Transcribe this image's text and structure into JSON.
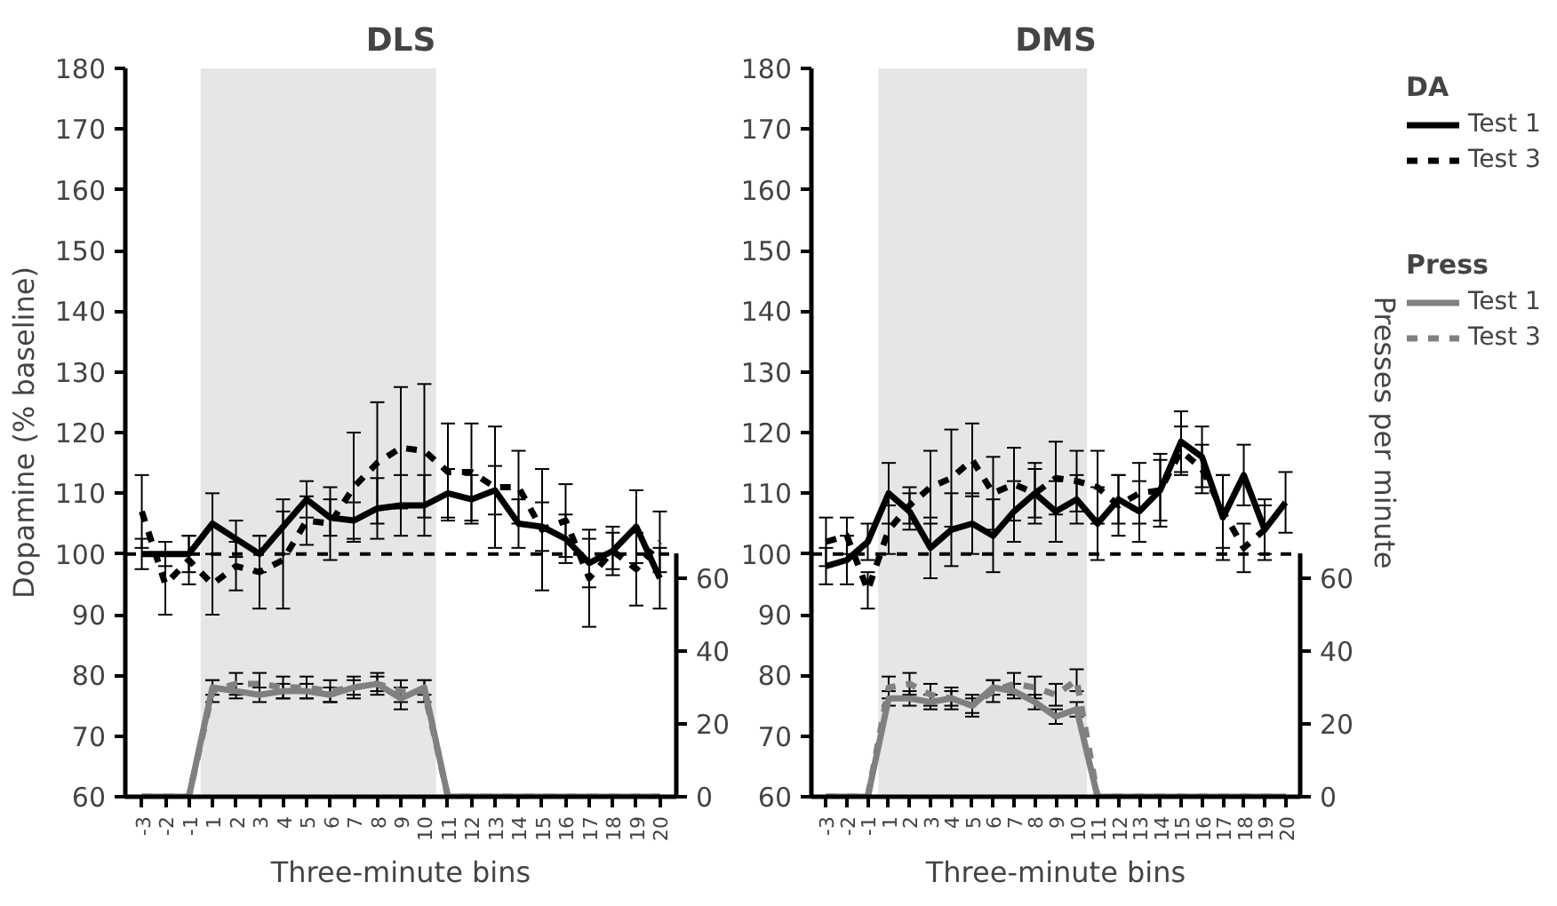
{
  "chart_data": [
    {
      "type": "line",
      "title": "DLS",
      "xlabel": "Three-minute bins",
      "ylabel": "Dopamine (% baseline)",
      "categories": [
        "-3",
        "-2",
        "-1",
        "1",
        "2",
        "3",
        "4",
        "5",
        "6",
        "7",
        "8",
        "9",
        "10",
        "11",
        "12",
        "13",
        "14",
        "15",
        "16",
        "17",
        "18",
        "19",
        "20"
      ],
      "ylim": [
        60,
        180
      ],
      "yticks": [
        60,
        70,
        80,
        90,
        100,
        110,
        120,
        130,
        140,
        150,
        160,
        170,
        180
      ],
      "y2lim": [
        0,
        200
      ],
      "y2ticks": [
        0,
        20,
        40,
        60
      ],
      "grid": false,
      "marker": "none",
      "ref_lines": [
        {
          "axis": "y",
          "value": 100,
          "color": "#000000",
          "line_style": "dashed"
        }
      ],
      "bands": [
        {
          "axis": "x",
          "from": "1",
          "to": "10",
          "color": "#e6e6e6"
        }
      ],
      "series": [
        {
          "color": "#000000",
          "line_style": "solid",
          "values": [
            100,
            100,
            100,
            105,
            102.5,
            100,
            104.5,
            109,
            106,
            105.5,
            107.5,
            108,
            108,
            110,
            109,
            110.5,
            105,
            104.5,
            102.5,
            98.5,
            100.5,
            104.5,
            96
          ],
          "errors": [
            2.5,
            2,
            3,
            5,
            3,
            3,
            4.5,
            3,
            3,
            3,
            5,
            5,
            5,
            4,
            4,
            4,
            4,
            4,
            4,
            4,
            3,
            6,
            5
          ]
        },
        {
          "color": "#000000",
          "line_style": "dashed",
          "values": [
            107,
            95,
            99,
            95,
            98,
            97,
            99,
            105.5,
            105,
            111,
            115,
            117.5,
            117,
            113.5,
            113.5,
            111,
            111,
            104,
            105.5,
            96,
            100.5,
            97.5,
            102
          ],
          "errors": [
            6,
            5,
            4,
            5,
            4,
            6,
            8,
            4,
            6,
            9,
            10,
            10,
            11,
            8,
            8,
            10,
            6,
            10,
            6,
            8,
            4,
            6,
            5
          ]
        },
        {
          "color": "#808080",
          "line_style": "solid",
          "axis": "y2",
          "values": [
            0,
            0,
            0,
            30,
            29,
            28,
            29,
            29,
            28,
            30,
            31,
            27,
            30,
            0,
            0,
            0,
            0,
            0,
            0,
            0,
            0,
            0,
            0
          ],
          "errors": [
            null,
            null,
            null,
            2,
            2,
            2,
            2,
            2,
            2,
            2,
            2,
            3,
            2,
            null,
            null,
            null,
            null,
            null,
            null,
            null,
            null,
            null,
            null
          ]
        },
        {
          "color": "#808080",
          "line_style": "dashed",
          "axis": "y2",
          "values": [
            0,
            0,
            0,
            29,
            31,
            31,
            30,
            30,
            29,
            30,
            31,
            29,
            29,
            0,
            0,
            0,
            0,
            0,
            0,
            0,
            0,
            0,
            0
          ],
          "errors": [
            null,
            null,
            null,
            3,
            3,
            3,
            3,
            3,
            3,
            3,
            3,
            3,
            3,
            null,
            null,
            null,
            null,
            null,
            null,
            null,
            null,
            null,
            null
          ]
        }
      ]
    },
    {
      "type": "line",
      "title": "DMS",
      "xlabel": "Three-minute bins",
      "y2label": "Presses per minute",
      "categories": [
        "-3",
        "-2",
        "-1",
        "1",
        "2",
        "3",
        "4",
        "5",
        "6",
        "7",
        "8",
        "9",
        "10",
        "11",
        "12",
        "13",
        "14",
        "15",
        "16",
        "17",
        "18",
        "19",
        "20"
      ],
      "ylim": [
        60,
        180
      ],
      "yticks": [
        60,
        70,
        80,
        90,
        100,
        110,
        120,
        130,
        140,
        150,
        160,
        170,
        180
      ],
      "y2lim": [
        0,
        200
      ],
      "y2ticks": [
        0,
        20,
        40,
        60
      ],
      "grid": false,
      "marker": "none",
      "legend": "top right",
      "legend_title": "DA",
      "annotations": [
        "Press"
      ],
      "ref_lines": [
        {
          "axis": "y",
          "value": 100,
          "color": "#000000",
          "line_style": "dashed"
        }
      ],
      "bands": [
        {
          "axis": "x",
          "from": "1",
          "to": "10",
          "color": "#e6e6e6"
        }
      ],
      "series": [
        {
          "name": "Test 1",
          "color": "#000000",
          "line_style": "solid",
          "values": [
            98,
            99,
            102,
            110,
            107,
            101,
            104,
            105,
            103,
            107,
            110,
            107,
            109,
            105,
            109,
            107,
            110.5,
            118.5,
            116,
            106,
            113,
            104,
            108.5
          ],
          "errors": [
            3,
            4,
            3,
            5,
            3,
            5,
            6,
            5,
            6,
            5,
            4,
            5,
            4,
            6,
            4,
            5,
            6,
            5,
            5,
            7,
            5,
            5,
            5
          ]
        },
        {
          "name": "Test 3",
          "color": "#000000",
          "line_style": "dashed",
          "values": [
            102,
            103,
            94,
            104,
            108,
            111,
            112.5,
            115.5,
            110,
            111.5,
            110,
            112.5,
            112,
            111,
            108,
            110,
            110.5,
            117,
            114,
            107,
            101,
            104,
            null
          ],
          "errors": [
            4,
            3,
            3,
            4,
            3,
            6,
            8,
            6,
            6,
            6,
            5,
            6,
            5,
            6,
            5,
            5,
            5,
            4,
            4,
            6,
            4,
            4,
            null
          ]
        },
        {
          "name": "Test 1",
          "color": "#808080",
          "line_style": "solid",
          "axis": "y2",
          "values": [
            0,
            0,
            0,
            27,
            27,
            26,
            27,
            25,
            30,
            29,
            26,
            22,
            24,
            0,
            0,
            0,
            0,
            0,
            0,
            0,
            0,
            0,
            0
          ],
          "errors": [
            null,
            null,
            null,
            2,
            2,
            2,
            2,
            2,
            2,
            2,
            2,
            2,
            2,
            null,
            null,
            null,
            null,
            null,
            null,
            null,
            null,
            null,
            null
          ]
        },
        {
          "name": "Test 3",
          "color": "#808080",
          "line_style": "dashed",
          "axis": "y2",
          "values": [
            0,
            0,
            0,
            30,
            31,
            28,
            27,
            25,
            29,
            31,
            30,
            28,
            32,
            0,
            0,
            0,
            0,
            0,
            0,
            0,
            0,
            0,
            0
          ],
          "errors": [
            null,
            null,
            null,
            3,
            3,
            3,
            3,
            3,
            3,
            3,
            3,
            3,
            3,
            null,
            null,
            null,
            null,
            null,
            null,
            null,
            null,
            null,
            null
          ]
        }
      ]
    }
  ]
}
